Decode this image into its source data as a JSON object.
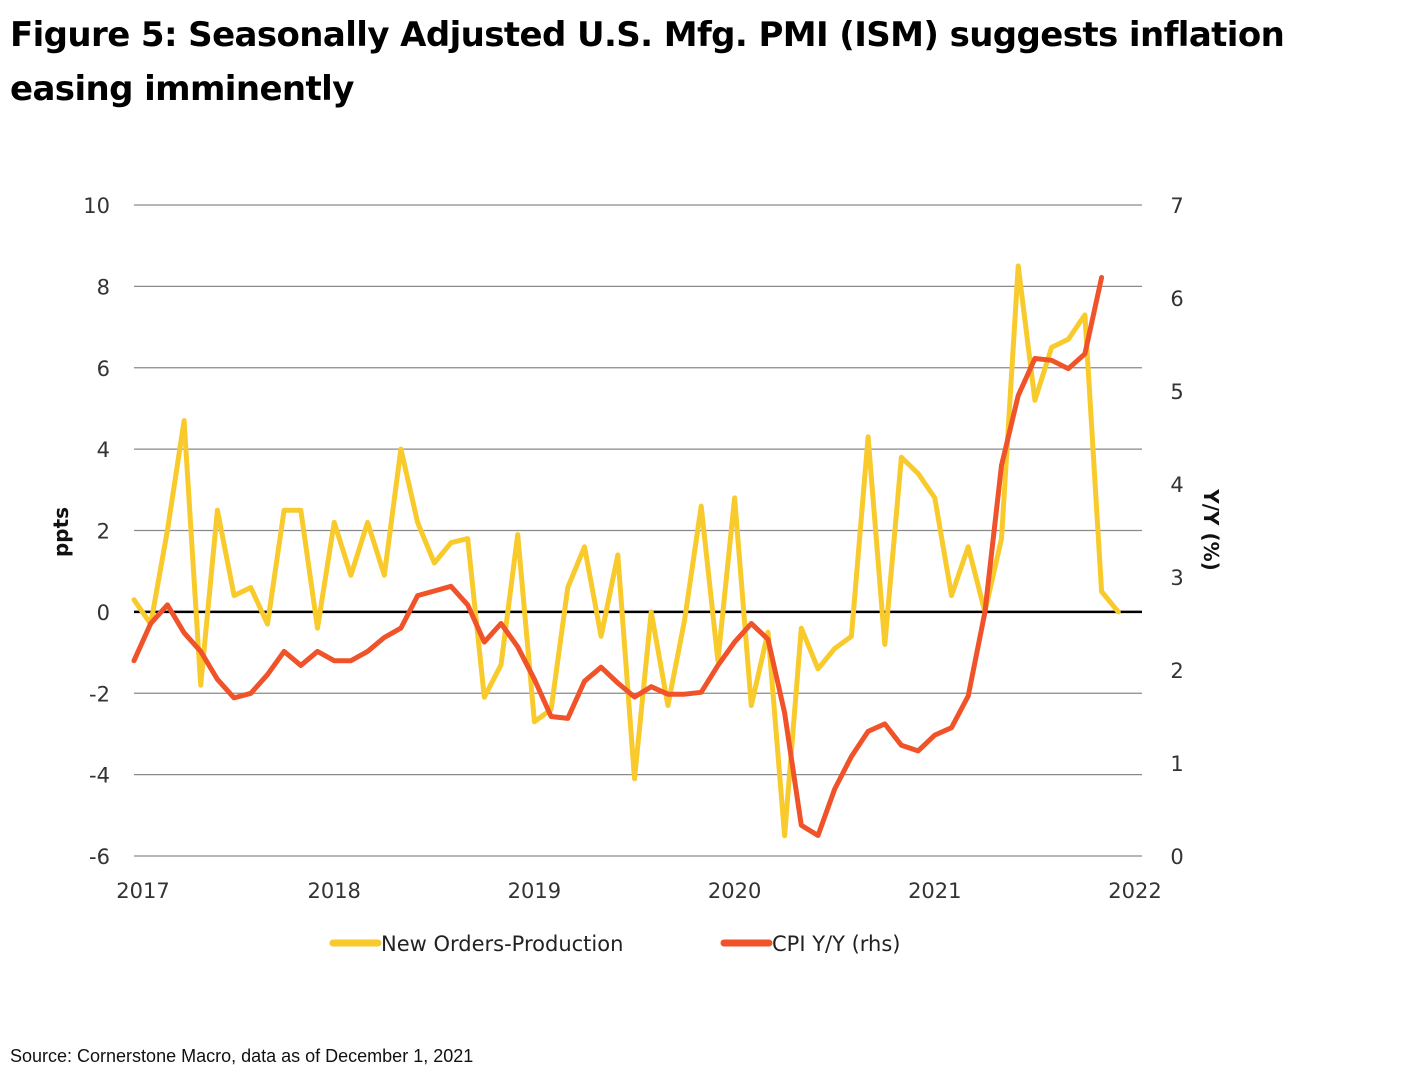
{
  "title": "Figure 5: Seasonally Adjusted U.S. Mfg. PMI (ISM) suggests inflation easing imminently",
  "source": "Source: Cornerstone Macro, data as of December 1, 2021",
  "colors": {
    "new_orders": "#F8CA2C",
    "cpi": "#F0522A",
    "grid": "#8a8a8a",
    "zero": "#000000"
  },
  "chart_data": {
    "type": "line",
    "title": "Figure 5: Seasonally Adjusted U.S. Mfg. PMI (ISM) suggests inflation easing imminently",
    "xlabel": "",
    "ylabel": "ppts",
    "y2label": "Y/Y (%)",
    "x_start": "2017-01",
    "x_frequency": "monthly",
    "xlim": [
      2017,
      2022
    ],
    "x_ticks": [
      "2017",
      "2018",
      "2019",
      "2020",
      "2021",
      "2022"
    ],
    "ylim": [
      -6,
      10
    ],
    "y_ticks": [
      "10",
      "8",
      "6",
      "4",
      "2",
      "0",
      "-2",
      "-4",
      "-6"
    ],
    "y2lim": [
      0,
      7
    ],
    "y2_ticks": [
      "7",
      "6",
      "5",
      "4",
      "3",
      "2",
      "1",
      "0"
    ],
    "grid": true,
    "legend_position": "bottom",
    "series": [
      {
        "name": "New Orders-Production",
        "axis": "left",
        "values": [
          0.3,
          -0.3,
          2.0,
          4.7,
          -1.8,
          2.5,
          0.4,
          0.6,
          -0.3,
          2.5,
          2.5,
          -0.4,
          2.2,
          0.9,
          2.2,
          0.9,
          4.0,
          2.2,
          1.2,
          1.7,
          1.8,
          -2.1,
          -1.3,
          1.9,
          -2.7,
          -2.4,
          0.6,
          1.6,
          -0.6,
          1.4,
          -4.1,
          0.0,
          -2.3,
          -0.2,
          2.6,
          -1.2,
          2.8,
          -2.3,
          -0.5,
          -5.5,
          -0.4,
          -1.4,
          -0.9,
          -0.6,
          4.3,
          -0.8,
          3.8,
          3.4,
          2.8,
          0.4,
          1.6,
          0.0,
          1.8,
          8.5,
          5.2,
          6.5,
          6.7,
          7.3,
          0.5,
          0.0
        ]
      },
      {
        "name": "CPI Y/Y (rhs)",
        "axis": "right",
        "values": [
          2.1,
          2.5,
          2.7,
          2.4,
          2.2,
          1.9,
          1.7,
          1.75,
          1.95,
          2.2,
          2.05,
          2.2,
          2.1,
          2.1,
          2.2,
          2.35,
          2.45,
          2.8,
          2.85,
          2.9,
          2.7,
          2.3,
          2.5,
          2.25,
          1.9,
          1.5,
          1.48,
          1.88,
          2.03,
          1.86,
          1.71,
          1.82,
          1.74,
          1.74,
          1.76,
          2.05,
          2.3,
          2.5,
          2.33,
          1.54,
          0.33,
          0.22,
          0.72,
          1.07,
          1.34,
          1.42,
          1.19,
          1.13,
          1.3,
          1.38,
          1.72,
          2.62,
          4.2,
          4.95,
          5.35,
          5.33,
          5.24,
          5.4,
          6.22
        ]
      }
    ]
  }
}
